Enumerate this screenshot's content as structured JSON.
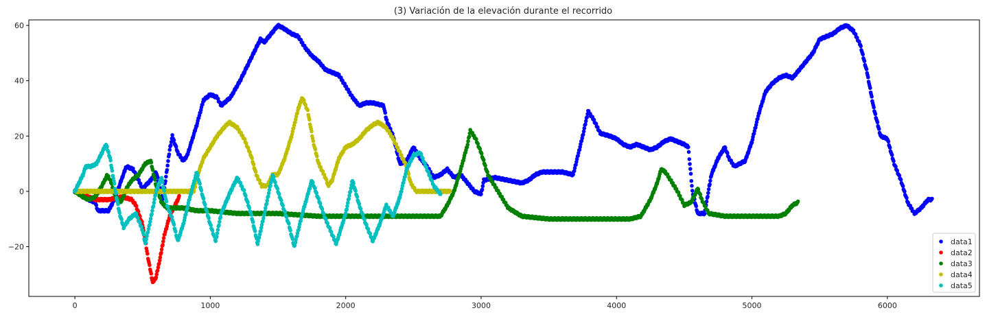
{
  "chart_data": {
    "type": "scatter",
    "title": "(3) Variación de la elevación durante el recorrido",
    "xlabel": "",
    "ylabel": "",
    "xlim": [
      -340,
      6680
    ],
    "ylim": [
      -38,
      62
    ],
    "xticks": [
      0,
      1000,
      2000,
      3000,
      4000,
      5000,
      6000
    ],
    "yticks": [
      -20,
      0,
      20,
      40,
      60
    ],
    "xtick_labels": [
      "0",
      "1000",
      "2000",
      "3000",
      "4000",
      "5000",
      "6000"
    ],
    "ytick_labels": [
      "−20",
      "0",
      "20",
      "40",
      "60"
    ],
    "grid": false,
    "legend_position": "lower-right",
    "series": [
      {
        "name": "data1",
        "color": "#0000ff",
        "x_start": 0,
        "x_end": 6330,
        "points": [
          [
            0,
            0
          ],
          [
            50,
            -1
          ],
          [
            100,
            -3
          ],
          [
            150,
            -4
          ],
          [
            170,
            -7
          ],
          [
            250,
            -7
          ],
          [
            300,
            -2
          ],
          [
            350,
            5
          ],
          [
            380,
            9
          ],
          [
            430,
            8
          ],
          [
            500,
            1
          ],
          [
            560,
            4
          ],
          [
            600,
            7
          ],
          [
            650,
            -3
          ],
          [
            700,
            15
          ],
          [
            720,
            20
          ],
          [
            760,
            14
          ],
          [
            800,
            11
          ],
          [
            830,
            13
          ],
          [
            900,
            24
          ],
          [
            950,
            33
          ],
          [
            1000,
            35
          ],
          [
            1050,
            34
          ],
          [
            1080,
            31
          ],
          [
            1150,
            34
          ],
          [
            1220,
            40
          ],
          [
            1270,
            45
          ],
          [
            1320,
            50
          ],
          [
            1370,
            55
          ],
          [
            1400,
            54
          ],
          [
            1450,
            57
          ],
          [
            1500,
            60
          ],
          [
            1540,
            59
          ],
          [
            1600,
            57
          ],
          [
            1650,
            56
          ],
          [
            1700,
            52
          ],
          [
            1750,
            49
          ],
          [
            1800,
            47
          ],
          [
            1850,
            44
          ],
          [
            1900,
            43
          ],
          [
            1950,
            42
          ],
          [
            2000,
            38
          ],
          [
            2050,
            34
          ],
          [
            2100,
            31
          ],
          [
            2150,
            32
          ],
          [
            2200,
            32
          ],
          [
            2280,
            31
          ],
          [
            2300,
            26
          ],
          [
            2350,
            20
          ],
          [
            2400,
            10
          ],
          [
            2450,
            11
          ],
          [
            2500,
            16
          ],
          [
            2550,
            12
          ],
          [
            2600,
            9
          ],
          [
            2650,
            5
          ],
          [
            2700,
            6
          ],
          [
            2750,
            8
          ],
          [
            2800,
            5
          ],
          [
            2850,
            6
          ],
          [
            2900,
            3
          ],
          [
            2950,
            0
          ],
          [
            3000,
            -1
          ],
          [
            3020,
            4
          ],
          [
            3100,
            5
          ],
          [
            3200,
            4
          ],
          [
            3300,
            3
          ],
          [
            3350,
            4
          ],
          [
            3400,
            6
          ],
          [
            3450,
            7
          ],
          [
            3600,
            7
          ],
          [
            3680,
            6
          ],
          [
            3700,
            10
          ],
          [
            3750,
            20
          ],
          [
            3790,
            29
          ],
          [
            3830,
            26
          ],
          [
            3880,
            21
          ],
          [
            3950,
            20
          ],
          [
            4000,
            19
          ],
          [
            4050,
            17
          ],
          [
            4100,
            16
          ],
          [
            4150,
            17
          ],
          [
            4200,
            16
          ],
          [
            4250,
            15
          ],
          [
            4300,
            16
          ],
          [
            4350,
            18
          ],
          [
            4400,
            19
          ],
          [
            4450,
            18
          ],
          [
            4500,
            17
          ],
          [
            4530,
            16
          ],
          [
            4560,
            0
          ],
          [
            4600,
            -8
          ],
          [
            4650,
            -8
          ],
          [
            4700,
            6
          ],
          [
            4750,
            12
          ],
          [
            4800,
            16
          ],
          [
            4830,
            12
          ],
          [
            4870,
            9
          ],
          [
            4950,
            11
          ],
          [
            5000,
            18
          ],
          [
            5050,
            28
          ],
          [
            5100,
            36
          ],
          [
            5150,
            39
          ],
          [
            5200,
            41
          ],
          [
            5250,
            42
          ],
          [
            5300,
            41
          ],
          [
            5350,
            44
          ],
          [
            5400,
            47
          ],
          [
            5450,
            50
          ],
          [
            5500,
            55
          ],
          [
            5550,
            56
          ],
          [
            5600,
            57
          ],
          [
            5650,
            59
          ],
          [
            5700,
            60
          ],
          [
            5750,
            58
          ],
          [
            5800,
            53
          ],
          [
            5850,
            43
          ],
          [
            5900,
            30
          ],
          [
            5950,
            20
          ],
          [
            6000,
            19
          ],
          [
            6050,
            10
          ],
          [
            6100,
            4
          ],
          [
            6150,
            -4
          ],
          [
            6200,
            -8
          ],
          [
            6250,
            -6
          ],
          [
            6300,
            -3
          ],
          [
            6330,
            -3
          ]
        ]
      },
      {
        "name": "data2",
        "color": "#ff0000",
        "x_start": 0,
        "x_end": 770,
        "points": [
          [
            0,
            0
          ],
          [
            50,
            -1
          ],
          [
            150,
            -3
          ],
          [
            250,
            -3
          ],
          [
            350,
            -2
          ],
          [
            420,
            -3
          ],
          [
            450,
            -5
          ],
          [
            500,
            -12
          ],
          [
            540,
            -24
          ],
          [
            575,
            -33
          ],
          [
            600,
            -31
          ],
          [
            630,
            -24
          ],
          [
            660,
            -16
          ],
          [
            700,
            -9
          ],
          [
            740,
            -5
          ],
          [
            770,
            -2
          ]
        ]
      },
      {
        "name": "data3",
        "color": "#008000",
        "x_start": 0,
        "x_end": 5340,
        "points": [
          [
            0,
            0
          ],
          [
            60,
            -2
          ],
          [
            100,
            -3
          ],
          [
            150,
            -2
          ],
          [
            200,
            2
          ],
          [
            240,
            6
          ],
          [
            270,
            3
          ],
          [
            300,
            -2
          ],
          [
            340,
            -4
          ],
          [
            380,
            1
          ],
          [
            420,
            4
          ],
          [
            470,
            6
          ],
          [
            520,
            10
          ],
          [
            560,
            11
          ],
          [
            600,
            2
          ],
          [
            640,
            -4
          ],
          [
            680,
            -6
          ],
          [
            800,
            -6
          ],
          [
            900,
            -7
          ],
          [
            1000,
            -7
          ],
          [
            1200,
            -8
          ],
          [
            1500,
            -8
          ],
          [
            1800,
            -9
          ],
          [
            2100,
            -9
          ],
          [
            2400,
            -9
          ],
          [
            2600,
            -9
          ],
          [
            2700,
            -9
          ],
          [
            2750,
            -5
          ],
          [
            2800,
            0
          ],
          [
            2850,
            8
          ],
          [
            2900,
            17
          ],
          [
            2920,
            22
          ],
          [
            2960,
            19
          ],
          [
            3000,
            14
          ],
          [
            3050,
            6
          ],
          [
            3100,
            2
          ],
          [
            3150,
            -2
          ],
          [
            3200,
            -6
          ],
          [
            3300,
            -9
          ],
          [
            3500,
            -10
          ],
          [
            3700,
            -10
          ],
          [
            3900,
            -10
          ],
          [
            4100,
            -10
          ],
          [
            4180,
            -9
          ],
          [
            4250,
            -3
          ],
          [
            4300,
            3
          ],
          [
            4330,
            8
          ],
          [
            4360,
            7
          ],
          [
            4400,
            4
          ],
          [
            4450,
            0
          ],
          [
            4500,
            -5
          ],
          [
            4550,
            -4
          ],
          [
            4600,
            1
          ],
          [
            4630,
            -3
          ],
          [
            4680,
            -8
          ],
          [
            4800,
            -9
          ],
          [
            5000,
            -9
          ],
          [
            5200,
            -9
          ],
          [
            5250,
            -8
          ],
          [
            5300,
            -5
          ],
          [
            5340,
            -4
          ]
        ]
      },
      {
        "name": "data4",
        "color": "#bfbf00",
        "x_start": 0,
        "x_end": 2770,
        "points": [
          [
            0,
            0
          ],
          [
            300,
            0
          ],
          [
            600,
            0
          ],
          [
            880,
            0
          ],
          [
            900,
            5
          ],
          [
            950,
            12
          ],
          [
            1000,
            16
          ],
          [
            1050,
            20
          ],
          [
            1100,
            23
          ],
          [
            1140,
            25
          ],
          [
            1200,
            23
          ],
          [
            1250,
            19
          ],
          [
            1300,
            13
          ],
          [
            1340,
            6
          ],
          [
            1380,
            2
          ],
          [
            1420,
            2
          ],
          [
            1460,
            6
          ],
          [
            1500,
            6
          ],
          [
            1550,
            12
          ],
          [
            1600,
            20
          ],
          [
            1650,
            30
          ],
          [
            1680,
            34
          ],
          [
            1720,
            29
          ],
          [
            1760,
            18
          ],
          [
            1800,
            10
          ],
          [
            1850,
            5
          ],
          [
            1870,
            2
          ],
          [
            1900,
            4
          ],
          [
            1950,
            12
          ],
          [
            2000,
            16
          ],
          [
            2050,
            17
          ],
          [
            2100,
            19
          ],
          [
            2150,
            22
          ],
          [
            2200,
            24
          ],
          [
            2240,
            25
          ],
          [
            2300,
            23
          ],
          [
            2350,
            19
          ],
          [
            2400,
            14
          ],
          [
            2450,
            9
          ],
          [
            2480,
            3
          ],
          [
            2520,
            0
          ],
          [
            2600,
            0
          ],
          [
            2700,
            0
          ],
          [
            2770,
            0
          ]
        ]
      },
      {
        "name": "data5",
        "color": "#00bfbf",
        "x_start": 0,
        "x_end": 2700,
        "points": [
          [
            0,
            0
          ],
          [
            30,
            3
          ],
          [
            60,
            6
          ],
          [
            80,
            9
          ],
          [
            120,
            9
          ],
          [
            160,
            10
          ],
          [
            200,
            14
          ],
          [
            230,
            17
          ],
          [
            260,
            12
          ],
          [
            300,
            0
          ],
          [
            330,
            -8
          ],
          [
            360,
            -13
          ],
          [
            400,
            -10
          ],
          [
            450,
            -8
          ],
          [
            500,
            -14
          ],
          [
            520,
            -19
          ],
          [
            560,
            -10
          ],
          [
            600,
            0
          ],
          [
            640,
            5
          ],
          [
            680,
            -5
          ],
          [
            720,
            -10
          ],
          [
            760,
            -18
          ],
          [
            800,
            -12
          ],
          [
            850,
            -2
          ],
          [
            900,
            7
          ],
          [
            950,
            -3
          ],
          [
            1000,
            -12
          ],
          [
            1040,
            -18
          ],
          [
            1080,
            -8
          ],
          [
            1150,
            0
          ],
          [
            1200,
            5
          ],
          [
            1250,
            0
          ],
          [
            1300,
            -8
          ],
          [
            1350,
            -19
          ],
          [
            1400,
            -8
          ],
          [
            1460,
            6
          ],
          [
            1520,
            -3
          ],
          [
            1580,
            -12
          ],
          [
            1620,
            -20
          ],
          [
            1680,
            -8
          ],
          [
            1750,
            4
          ],
          [
            1800,
            -3
          ],
          [
            1850,
            -10
          ],
          [
            1930,
            -19
          ],
          [
            2000,
            -8
          ],
          [
            2050,
            4
          ],
          [
            2100,
            -5
          ],
          [
            2150,
            -12
          ],
          [
            2200,
            -18
          ],
          [
            2250,
            -12
          ],
          [
            2300,
            -5
          ],
          [
            2350,
            -9
          ],
          [
            2400,
            -2
          ],
          [
            2450,
            8
          ],
          [
            2500,
            13
          ],
          [
            2550,
            14
          ],
          [
            2600,
            8
          ],
          [
            2650,
            2
          ],
          [
            2700,
            -1
          ]
        ]
      }
    ]
  }
}
